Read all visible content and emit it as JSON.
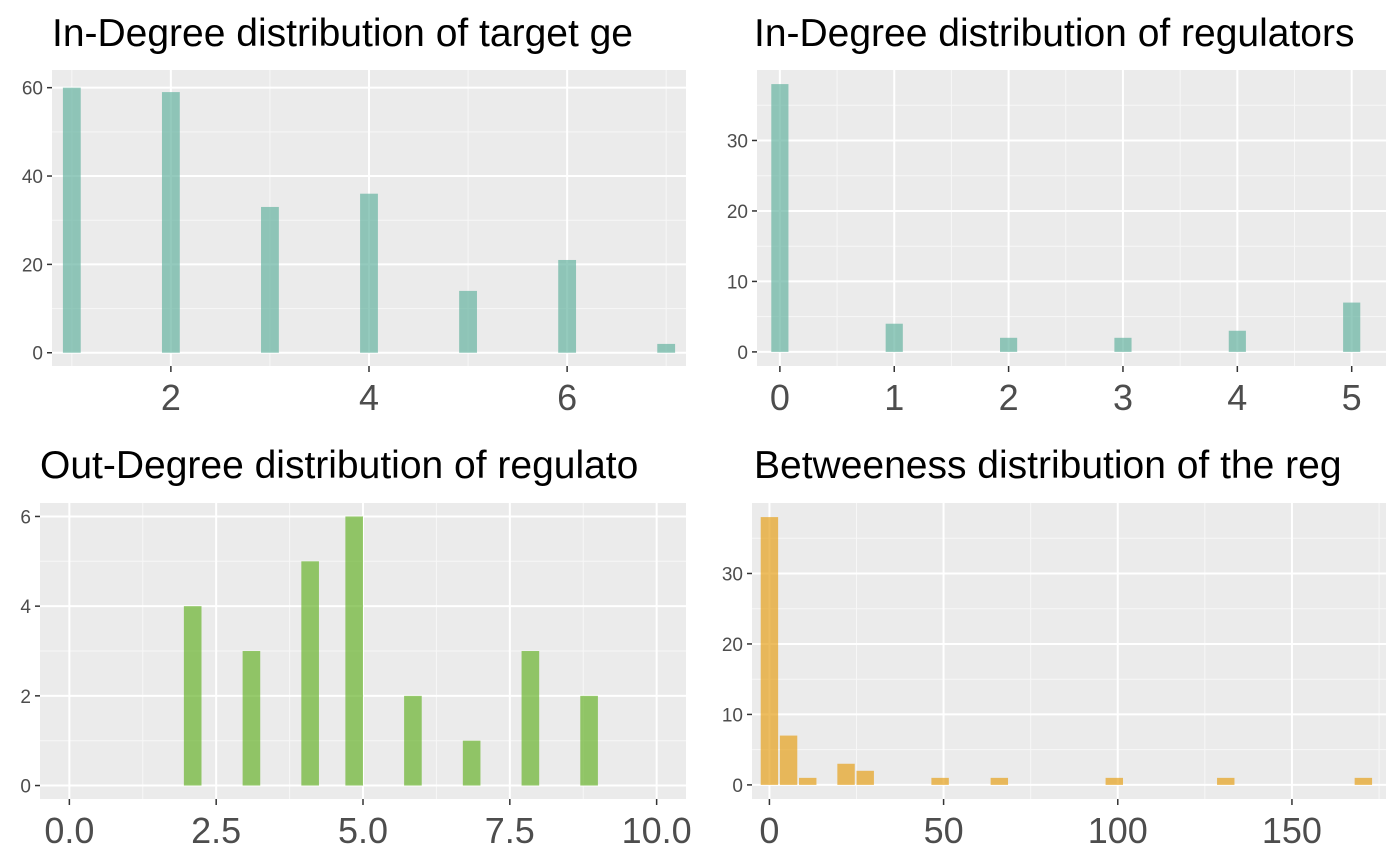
{
  "chart_data": [
    {
      "type": "bar",
      "title": "In-Degree distribution of target ge",
      "color": "#66b3a1",
      "x": [
        1,
        2,
        3,
        4,
        5,
        6,
        7
      ],
      "values": [
        60,
        59,
        33,
        36,
        14,
        21,
        2
      ],
      "bar_width": 0.18,
      "xlim": [
        0.8,
        7.2
      ],
      "ylim": [
        -3,
        64
      ],
      "xticks": [
        2,
        4,
        6
      ],
      "xtick_labels": [
        "2",
        "4",
        "6"
      ],
      "yticks": [
        0,
        20,
        40,
        60
      ],
      "ytick_labels": [
        "0",
        "20",
        "40",
        "60"
      ],
      "grid": true
    },
    {
      "type": "bar",
      "title": "In-Degree distribution of regulators",
      "color": "#66b3a1",
      "x": [
        0,
        1,
        2,
        3,
        4,
        5
      ],
      "values": [
        38,
        4,
        2,
        2,
        3,
        7
      ],
      "bar_width": 0.15,
      "xlim": [
        -0.2,
        5.3
      ],
      "ylim": [
        -2,
        40
      ],
      "xticks": [
        0,
        1,
        2,
        3,
        4,
        5
      ],
      "xtick_labels": [
        "0",
        "1",
        "2",
        "3",
        "4",
        "5"
      ],
      "yticks": [
        0,
        10,
        20,
        30
      ],
      "ytick_labels": [
        "0",
        "10",
        "20",
        "30"
      ],
      "grid": true
    },
    {
      "type": "bar",
      "title": "Out-Degree distribution of regulato",
      "color": "#6ab42d",
      "x": [
        2.1,
        3.1,
        4.1,
        4.85,
        5.85,
        6.85,
        7.85,
        8.85
      ],
      "values": [
        4,
        3,
        5,
        6,
        2,
        1,
        3,
        2
      ],
      "bar_width": 0.3,
      "xlim": [
        -0.5,
        10.5
      ],
      "ylim": [
        -0.3,
        6.3
      ],
      "xticks": [
        0,
        2.5,
        5,
        7.5,
        10
      ],
      "xtick_labels": [
        "0.0",
        "2.5",
        "5.0",
        "7.5",
        "10.0"
      ],
      "yticks": [
        0,
        2,
        4,
        6
      ],
      "ytick_labels": [
        "0",
        "2",
        "4",
        "6"
      ],
      "grid": true
    },
    {
      "type": "bar",
      "title": "Betweeness distribution of the reg",
      "color": "#e5a11c",
      "x": [
        0,
        5.5,
        11,
        22,
        27.5,
        49,
        66,
        99,
        131,
        170.5
      ],
      "values": [
        38,
        7,
        1,
        3,
        2,
        1,
        1,
        1,
        1,
        1
      ],
      "bar_width": 5,
      "xlim": [
        -5,
        177
      ],
      "ylim": [
        -2,
        40
      ],
      "xticks": [
        0,
        50,
        100,
        150
      ],
      "xtick_labels": [
        "0",
        "50",
        "100",
        "150"
      ],
      "yticks": [
        0,
        10,
        20,
        30
      ],
      "ytick_labels": [
        "0",
        "10",
        "20",
        "30"
      ],
      "grid": true
    }
  ]
}
